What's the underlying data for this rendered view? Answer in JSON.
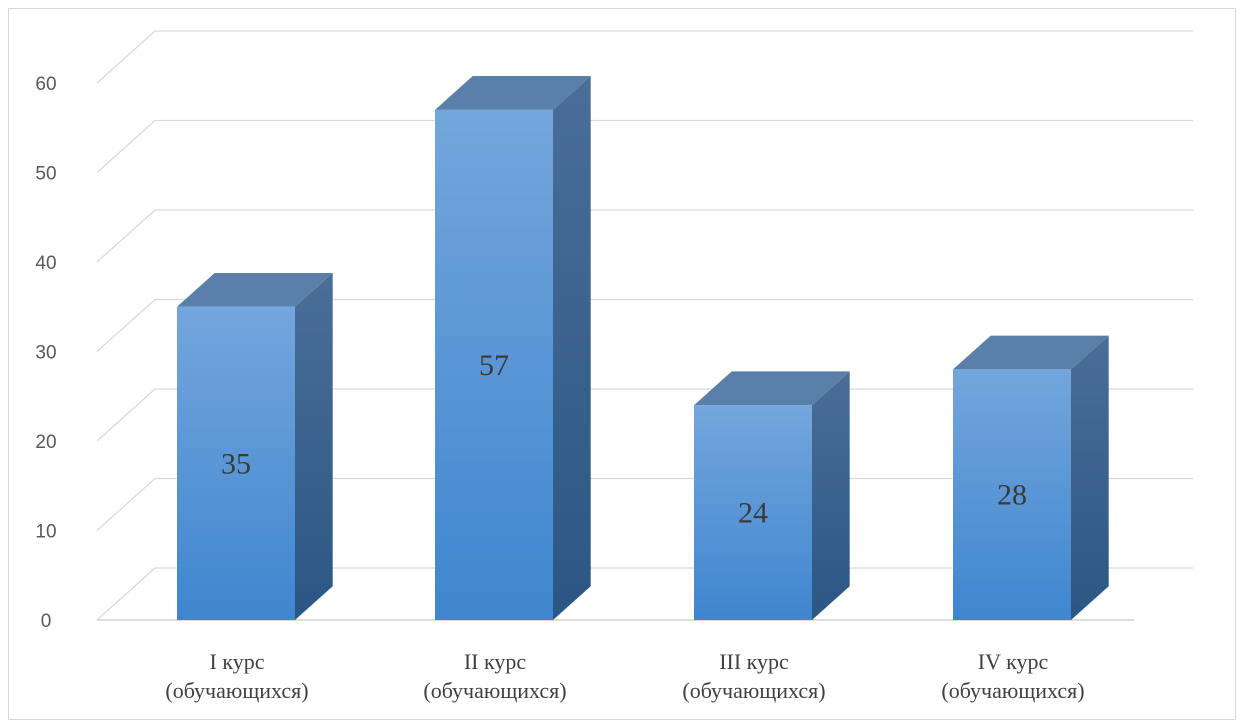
{
  "chart_data": {
    "type": "bar",
    "style": "3d-column",
    "title": "",
    "xlabel": "",
    "ylabel": "",
    "categories": [
      [
        "I курс",
        "(обучающихся)"
      ],
      [
        "II курс",
        "(обучающихся)"
      ],
      [
        "III курс",
        "(обучающихся)"
      ],
      [
        "IV курс",
        "(обучающихся)"
      ]
    ],
    "values": [
      35,
      57,
      24,
      28
    ],
    "data_labels": [
      "35",
      "57",
      "24",
      "28"
    ],
    "ylim": [
      0,
      60
    ],
    "yticks": [
      0,
      10,
      20,
      30,
      40,
      50,
      60
    ],
    "grid": true,
    "legend": "none",
    "colors": {
      "front_top": "#73a6dc",
      "front_bottom": "#3f86cf",
      "side_top": "#4a6e97",
      "side_bottom": "#2b5684",
      "top_face": "#5a7fa8",
      "grid": "#d9d9d9",
      "axis": "#d0d0d0"
    }
  }
}
